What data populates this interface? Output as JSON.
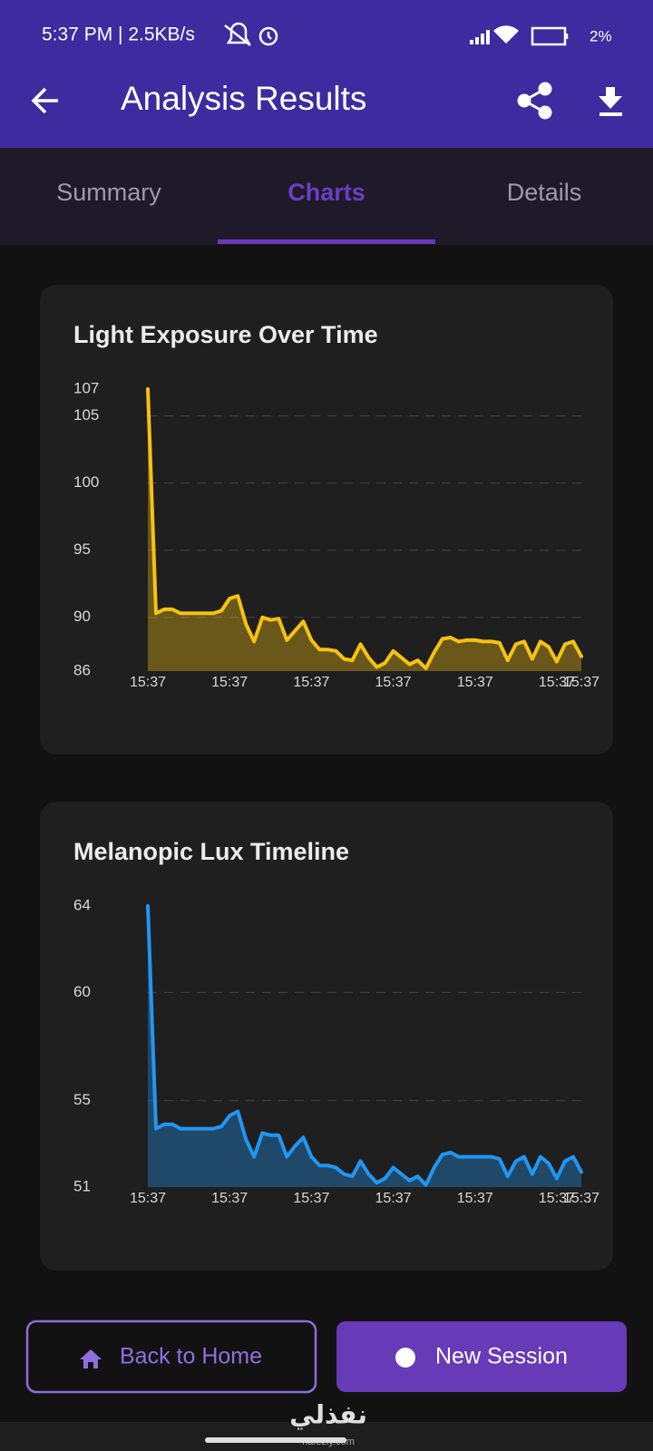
{
  "status_bar": {
    "status": "5:37 PM | 2.5KB/s",
    "battery": "2%"
  },
  "app_bar": {
    "title": "Analysis Results"
  },
  "tabs": [
    "Summary",
    "Charts",
    "Details"
  ],
  "chart_data": [
    {
      "type": "line",
      "title": "Light Exposure Over Time",
      "color": "#f5c211",
      "grid": true,
      "x": [
        0,
        1,
        2,
        3,
        4,
        5,
        6,
        7,
        8,
        9,
        10,
        11,
        12,
        13,
        14,
        15,
        16,
        17,
        18,
        19,
        20,
        21,
        22,
        23,
        24,
        25,
        26,
        27,
        28,
        29,
        30,
        31,
        32,
        33,
        34,
        35,
        36,
        37,
        38,
        39,
        40,
        41,
        42,
        43,
        44,
        45,
        46,
        47,
        48,
        49,
        50,
        51,
        52,
        53
      ],
      "values": [
        107,
        90.3,
        90.6,
        90.6,
        90.3,
        90.3,
        90.3,
        90.3,
        90.3,
        90.5,
        91.4,
        91.6,
        89.5,
        88.2,
        90,
        89.8,
        89.9,
        88.3,
        89,
        89.7,
        88.3,
        87.6,
        87.6,
        87.5,
        86.9,
        86.8,
        88,
        87,
        86.3,
        86.6,
        87.5,
        87,
        86.5,
        86.8,
        86.2,
        87.4,
        88.4,
        88.5,
        88.2,
        88.3,
        88.3,
        88.2,
        88.2,
        88.1,
        86.8,
        88,
        88.2,
        86.9,
        88.2,
        87.8,
        86.7,
        88,
        88.2,
        87.1
      ],
      "xlim": [
        0,
        53
      ],
      "xticks": [
        {
          "value": 0,
          "label": "15:37"
        },
        {
          "value": 10,
          "label": "15:37"
        },
        {
          "value": 20,
          "label": "15:37"
        },
        {
          "value": 30,
          "label": "15:37"
        },
        {
          "value": 40,
          "label": "15:37"
        },
        {
          "value": 50,
          "label": "15:37"
        },
        {
          "value": 53,
          "label": "15:37"
        }
      ],
      "ylim": [
        86,
        107
      ],
      "yticks": [
        86,
        90,
        95,
        100,
        105,
        107
      ]
    },
    {
      "type": "line",
      "title": "Melanopic Lux Timeline",
      "color": "#2196f3",
      "grid": true,
      "x": [
        0,
        1,
        2,
        3,
        4,
        5,
        6,
        7,
        8,
        9,
        10,
        11,
        12,
        13,
        14,
        15,
        16,
        17,
        18,
        19,
        20,
        21,
        22,
        23,
        24,
        25,
        26,
        27,
        28,
        29,
        30,
        31,
        32,
        33,
        34,
        35,
        36,
        37,
        38,
        39,
        40,
        41,
        42,
        43,
        44,
        45,
        46,
        47,
        48,
        49,
        50,
        51,
        52,
        53
      ],
      "values": [
        64,
        53.7,
        53.9,
        53.9,
        53.7,
        53.7,
        53.7,
        53.7,
        53.7,
        53.8,
        54.3,
        54.5,
        53.2,
        52.4,
        53.5,
        53.4,
        53.4,
        52.4,
        52.9,
        53.3,
        52.4,
        52,
        52,
        51.9,
        51.6,
        51.5,
        52.2,
        51.6,
        51.2,
        51.4,
        51.9,
        51.6,
        51.3,
        51.5,
        51.1,
        51.9,
        52.5,
        52.6,
        52.4,
        52.4,
        52.4,
        52.4,
        52.4,
        52.3,
        51.5,
        52.2,
        52.4,
        51.6,
        52.4,
        52.1,
        51.4,
        52.2,
        52.4,
        51.7
      ],
      "xlim": [
        0,
        53
      ],
      "xticks": [
        {
          "value": 0,
          "label": "15:37"
        },
        {
          "value": 10,
          "label": "15:37"
        },
        {
          "value": 20,
          "label": "15:37"
        },
        {
          "value": 30,
          "label": "15:37"
        },
        {
          "value": 40,
          "label": "15:37"
        },
        {
          "value": 50,
          "label": "15:37"
        },
        {
          "value": 53,
          "label": "15:37"
        }
      ],
      "ylim": [
        51,
        64
      ],
      "yticks": [
        51,
        55,
        60,
        64
      ]
    }
  ],
  "buttons": [
    "Back to Home",
    "New Session"
  ],
  "watermark": {
    "text": "نفذلي",
    "url": "nafezly.com"
  }
}
